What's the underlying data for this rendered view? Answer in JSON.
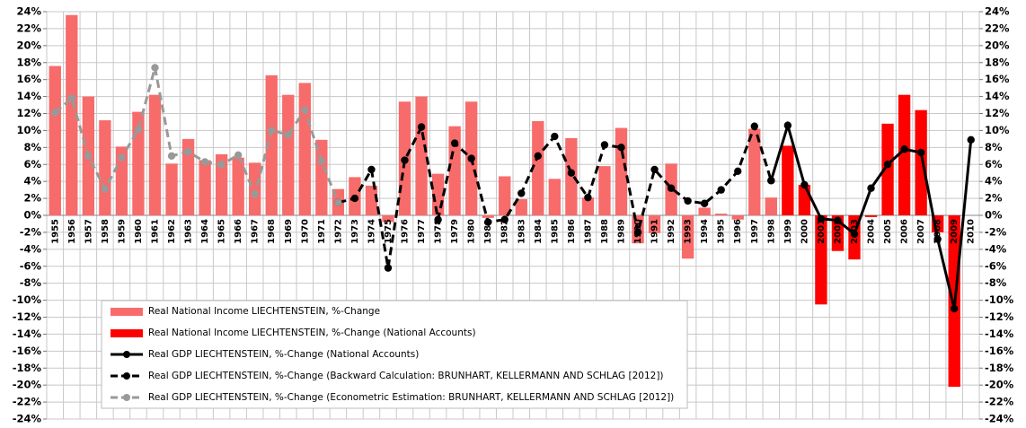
{
  "chart_data": {
    "type": "bar",
    "categories": [
      "1955",
      "1956",
      "1957",
      "1958",
      "1959",
      "1960",
      "1961",
      "1962",
      "1963",
      "1964",
      "1965",
      "1966",
      "1967",
      "1968",
      "1969",
      "1970",
      "1971",
      "1972",
      "1973",
      "1974",
      "1975",
      "1976",
      "1977",
      "1978",
      "1979",
      "1980",
      "1981",
      "1982",
      "1983",
      "1984",
      "1985",
      "1986",
      "1987",
      "1988",
      "1989",
      "1990",
      "1991",
      "1992",
      "1993",
      "1994",
      "1995",
      "1996",
      "1997",
      "1998",
      "1999",
      "2000",
      "2001",
      "2002",
      "2003",
      "2004",
      "2005",
      "2006",
      "2007",
      "2008",
      "2009",
      "2010"
    ],
    "series": [
      {
        "name": "Real National Income LIECHTENSTEIN, %-Change",
        "type": "bar",
        "color": "#f86b6b",
        "values": [
          17.6,
          23.6,
          14,
          11.2,
          8.1,
          12.2,
          14.2,
          6.1,
          9,
          6.5,
          7.2,
          6.8,
          6.2,
          16.5,
          14.2,
          15.6,
          8.9,
          3.1,
          4.5,
          3.5,
          -0.8,
          13.4,
          14,
          4.9,
          10.5,
          13.4,
          -0.3,
          4.6,
          1.9,
          11.1,
          4.3,
          9.1,
          2.1,
          5.8,
          10.3,
          -3.3,
          -2.1,
          6.1,
          -5.1,
          0.9,
          0.2,
          -0.5,
          10.2,
          2.1,
          null,
          null,
          null,
          null,
          null,
          null,
          null,
          null,
          null,
          null,
          null,
          null
        ]
      },
      {
        "name": "Real National Income LIECHTENSTEIN, %-Change (National Accounts)",
        "type": "bar",
        "color": "#ff0000",
        "values": [
          null,
          null,
          null,
          null,
          null,
          null,
          null,
          null,
          null,
          null,
          null,
          null,
          null,
          null,
          null,
          null,
          null,
          null,
          null,
          null,
          null,
          null,
          null,
          null,
          null,
          null,
          null,
          null,
          null,
          null,
          null,
          null,
          null,
          null,
          null,
          null,
          null,
          null,
          null,
          null,
          null,
          null,
          null,
          null,
          8.2,
          3.6,
          -10.5,
          -4.2,
          -5.2,
          -0.2,
          10.8,
          14.2,
          12.4,
          -2,
          -20.2,
          null
        ]
      },
      {
        "name": "Real GDP LIECHTENSTEIN, %-Change (National Accounts)",
        "type": "line",
        "color": "#000000",
        "dashed": false,
        "values": [
          null,
          null,
          null,
          null,
          null,
          null,
          null,
          null,
          null,
          null,
          null,
          null,
          null,
          null,
          null,
          null,
          null,
          null,
          null,
          null,
          null,
          null,
          null,
          null,
          null,
          null,
          null,
          null,
          null,
          null,
          null,
          null,
          null,
          null,
          null,
          null,
          null,
          null,
          null,
          null,
          null,
          null,
          null,
          4.1,
          10.6,
          3.6,
          -0.4,
          -0.6,
          -2.2,
          3.2,
          6,
          7.8,
          7.4,
          -2.8,
          -11,
          8.9
        ]
      },
      {
        "name": "Real GDP LIECHTENSTEIN, %-Change (Backward Calculation: BRUNHART, KELLERMANN AND SCHLAG [2012])",
        "type": "line",
        "color": "#000000",
        "dashed": true,
        "values": [
          null,
          null,
          null,
          null,
          null,
          null,
          null,
          null,
          null,
          null,
          null,
          null,
          null,
          null,
          null,
          null,
          null,
          1.5,
          2,
          5.4,
          -6.2,
          6.5,
          10.4,
          -0.5,
          8.5,
          6.7,
          -0.8,
          -0.5,
          2.6,
          7,
          9.3,
          5,
          2.1,
          8.3,
          8,
          -2,
          5.4,
          3.2,
          1.7,
          1.4,
          3,
          5.2,
          10.5,
          4.1,
          null,
          null,
          null,
          null,
          null,
          null,
          null,
          null,
          null,
          null,
          null,
          null
        ]
      },
      {
        "name": "Real GDP LIECHTENSTEIN, %-Change (Econometric Estimation: BRUNHART, KELLERMANN AND SCHLAG [2012])",
        "type": "line",
        "color": "#999999",
        "dashed": true,
        "values": [
          12.1,
          13.8,
          7,
          3.1,
          6.8,
          10.1,
          17.4,
          7,
          7.5,
          6.3,
          6,
          7.1,
          2.5,
          10,
          9.5,
          12.4,
          6.4,
          1.5,
          null,
          null,
          null,
          null,
          null,
          null,
          null,
          null,
          null,
          null,
          null,
          null,
          null,
          null,
          null,
          null,
          null,
          null,
          null,
          null,
          null,
          null,
          null,
          null,
          null,
          null,
          null,
          null,
          null,
          null,
          null,
          null,
          null,
          null,
          null,
          null,
          null,
          null
        ]
      }
    ],
    "ylim": [
      -24,
      24
    ],
    "yticks": [
      {
        "value": -24,
        "label": "-24%"
      },
      {
        "value": -22,
        "label": "-22%"
      },
      {
        "value": -20,
        "label": "-20%"
      },
      {
        "value": -18,
        "label": "-18%"
      },
      {
        "value": -16,
        "label": "-16%"
      },
      {
        "value": -14,
        "label": "-14%"
      },
      {
        "value": -12,
        "label": "-12%"
      },
      {
        "value": -10,
        "label": "-10%"
      },
      {
        "value": -8,
        "label": "-8%"
      },
      {
        "value": -6,
        "label": "-6%"
      },
      {
        "value": -4,
        "label": "-4%"
      },
      {
        "value": -2,
        "label": "-2%"
      },
      {
        "value": 0,
        "label": "0%"
      },
      {
        "value": 2,
        "label": "2%"
      },
      {
        "value": 4,
        "label": "4%"
      },
      {
        "value": 6,
        "label": "6%"
      },
      {
        "value": 8,
        "label": "8%"
      },
      {
        "value": 10,
        "label": "10%"
      },
      {
        "value": 12,
        "label": "12%"
      },
      {
        "value": 14,
        "label": "14%"
      },
      {
        "value": 16,
        "label": "16%"
      },
      {
        "value": 18,
        "label": "18%"
      },
      {
        "value": 20,
        "label": "20%"
      },
      {
        "value": 22,
        "label": "22%"
      },
      {
        "value": 24,
        "label": "24%"
      }
    ],
    "y2lim": [
      -24,
      24
    ],
    "y2ticks": [
      {
        "value": -24,
        "label": "-24%"
      },
      {
        "value": -22,
        "label": "-22%"
      },
      {
        "value": -20,
        "label": "-20%"
      },
      {
        "value": -18,
        "label": "-18%"
      },
      {
        "value": -16,
        "label": "-16%"
      },
      {
        "value": -14,
        "label": "-14%"
      },
      {
        "value": -12,
        "label": "-12%"
      },
      {
        "value": -10,
        "label": "-10%"
      },
      {
        "value": -8,
        "label": "-8%"
      },
      {
        "value": -6,
        "label": "-6%"
      },
      {
        "value": -4,
        "label": "-4%"
      },
      {
        "value": -2,
        "label": "-2%"
      },
      {
        "value": 0,
        "label": "0%"
      },
      {
        "value": 2,
        "label": "2%"
      },
      {
        "value": 4,
        "label": "4%"
      },
      {
        "value": 6,
        "label": "6%"
      },
      {
        "value": 8,
        "label": "8%"
      },
      {
        "value": 10,
        "label": "10%"
      },
      {
        "value": 12,
        "label": "12%"
      },
      {
        "value": 14,
        "label": "14%"
      },
      {
        "value": 16,
        "label": "16%"
      },
      {
        "value": 18,
        "label": "18%"
      },
      {
        "value": 20,
        "label": "20%"
      },
      {
        "value": 22,
        "label": "22%"
      },
      {
        "value": 24,
        "label": "24%"
      }
    ],
    "grid": true,
    "legend": "bottom-left"
  }
}
